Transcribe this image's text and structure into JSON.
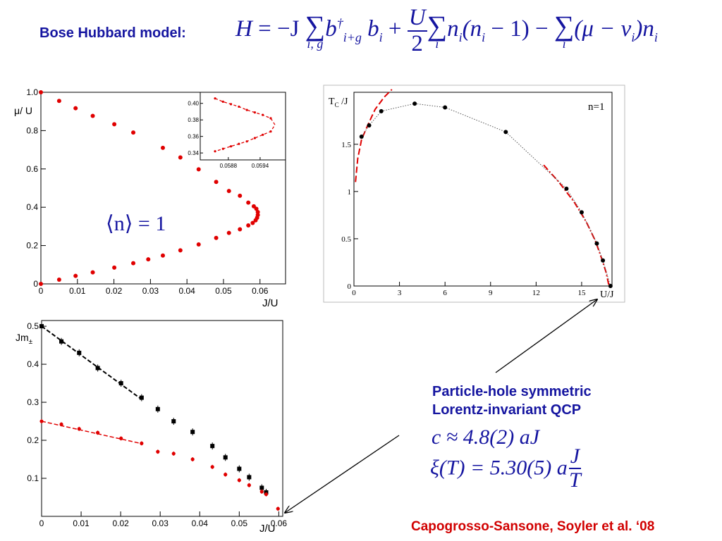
{
  "header": {
    "label": "Bose Hubbard model:",
    "formula": {
      "H": "H",
      "eq": " = −J",
      "sum1_idx": "i, g",
      "t1": "b",
      "t1_sup": "†",
      "t1_sub": "i+g",
      "t2": " b",
      "t2_sub": "i",
      "plus": " + ",
      "U": "U",
      "two": "2",
      "sum2_idx": "i",
      "t3": "n",
      "t3_sub": "i",
      "t4": "(n",
      "t4_sub": "i",
      "t5": " − 1) − ",
      "sum3_idx": "i",
      "t6": "(μ − v",
      "t6_sub": "i",
      "t7": ")n",
      "t7_sub": "i"
    }
  },
  "annotations": {
    "qcp_line1": "Particle-hole symmetric",
    "qcp_line2": "Lorentz-invariant QCP",
    "c_formula": "c ≈ 4.8(2) aJ",
    "xi_left": "ξ(T) = 5.30(5) a",
    "xi_num": "J",
    "xi_den": "T",
    "citation": "Capogrosso-Sansone, Soyler et al.  ‘08"
  },
  "colors": {
    "blue": "#1515a0",
    "red": "#e00000",
    "black": "#000000"
  },
  "chart_data": [
    {
      "id": "phase",
      "type": "scatter",
      "ylabel": "μ/ U",
      "xlabel": "J/U",
      "label": "⟨n⟩ = 1",
      "xlim": [
        0,
        0.067
      ],
      "ylim": [
        0,
        1.0
      ],
      "xticks": [
        "0",
        "0.01",
        "0.02",
        "0.03",
        "0.04",
        "0.05",
        "0.06"
      ],
      "yticks": [
        "0",
        "0.2",
        "0.4",
        "0.6",
        "0.8",
        "1.0"
      ],
      "upper": [
        [
          0,
          1.0
        ],
        [
          0.005,
          0.955
        ],
        [
          0.0095,
          0.917
        ],
        [
          0.0142,
          0.877
        ],
        [
          0.0201,
          0.833
        ],
        [
          0.0253,
          0.79
        ],
        [
          0.0334,
          0.71
        ],
        [
          0.0382,
          0.66
        ],
        [
          0.0432,
          0.598
        ],
        [
          0.048,
          0.532
        ],
        [
          0.0515,
          0.485
        ],
        [
          0.0545,
          0.46
        ],
        [
          0.0568,
          0.424
        ],
        [
          0.0583,
          0.405
        ],
        [
          0.059,
          0.392
        ]
      ],
      "lower": [
        [
          0,
          0.0
        ],
        [
          0.005,
          0.022
        ],
        [
          0.0095,
          0.042
        ],
        [
          0.0142,
          0.06
        ],
        [
          0.0201,
          0.085
        ],
        [
          0.0253,
          0.108
        ],
        [
          0.0294,
          0.128
        ],
        [
          0.0334,
          0.148
        ],
        [
          0.0382,
          0.175
        ],
        [
          0.0432,
          0.206
        ],
        [
          0.048,
          0.24
        ],
        [
          0.0515,
          0.266
        ],
        [
          0.0545,
          0.285
        ],
        [
          0.0568,
          0.305
        ],
        [
          0.058,
          0.318
        ],
        [
          0.0588,
          0.332
        ],
        [
          0.0592,
          0.345
        ],
        [
          0.0594,
          0.36
        ],
        [
          0.0594,
          0.375
        ]
      ],
      "inset": {
        "xticks": [
          "0.0588",
          "0.0594"
        ],
        "yticks": [
          "0.34",
          "0.36",
          "0.38",
          "0.40"
        ],
        "xlim": [
          0.05835,
          0.0598
        ],
        "ylim": [
          0.335,
          0.41
        ],
        "points": [
          [
            0.05855,
            0.406
          ],
          [
            0.0587,
            0.402
          ],
          [
            0.05885,
            0.399
          ],
          [
            0.059,
            0.396
          ],
          [
            0.05915,
            0.392
          ],
          [
            0.0593,
            0.389
          ],
          [
            0.05945,
            0.386
          ],
          [
            0.0596,
            0.382
          ],
          [
            0.0596,
            0.366
          ],
          [
            0.05945,
            0.362
          ],
          [
            0.0593,
            0.358
          ],
          [
            0.05915,
            0.354
          ],
          [
            0.059,
            0.351
          ],
          [
            0.05885,
            0.348
          ],
          [
            0.0587,
            0.345
          ],
          [
            0.05855,
            0.342
          ]
        ]
      }
    },
    {
      "id": "tc",
      "type": "line",
      "ylabel": "T",
      "ylabel_sub": "C",
      "ylabel_tail": " /J",
      "xlabel": "U/J",
      "legend": "n=1",
      "xlim": [
        0,
        17
      ],
      "ylim": [
        0,
        2.05
      ],
      "xticks": [
        "0",
        "3",
        "6",
        "9",
        "12",
        "15"
      ],
      "yticks": [
        "0",
        "0.5",
        "1",
        "1.5"
      ],
      "points": [
        [
          0.5,
          1.58
        ],
        [
          1.0,
          1.7
        ],
        [
          1.8,
          1.85
        ],
        [
          4.0,
          1.93
        ],
        [
          6.0,
          1.89
        ],
        [
          10.0,
          1.63
        ],
        [
          14.0,
          1.03
        ],
        [
          15.0,
          0.78
        ],
        [
          16.0,
          0.45
        ],
        [
          16.4,
          0.27
        ],
        [
          16.9,
          0.0
        ]
      ],
      "fit_left": [
        [
          0.1,
          1.1
        ],
        [
          0.25,
          1.35
        ],
        [
          0.5,
          1.55
        ],
        [
          0.9,
          1.7
        ],
        [
          1.4,
          1.87
        ],
        [
          2.0,
          2.0
        ],
        [
          2.5,
          2.08
        ]
      ],
      "fit_right": [
        [
          12.5,
          1.28
        ],
        [
          13.5,
          1.1
        ],
        [
          14.5,
          0.89
        ],
        [
          15.3,
          0.68
        ],
        [
          15.9,
          0.48
        ],
        [
          16.3,
          0.3
        ],
        [
          16.6,
          0.15
        ],
        [
          16.8,
          0.0
        ]
      ]
    },
    {
      "id": "gap",
      "type": "scatter",
      "ylabel": "Jm",
      "ylabel_sub": "±",
      "xlabel": "J/U",
      "xlim": [
        0,
        0.061
      ],
      "ylim": [
        0,
        0.515
      ],
      "xticks": [
        "0",
        "0.01",
        "0.02",
        "0.03",
        "0.04",
        "0.05",
        "0.06"
      ],
      "yticks": [
        "0.1",
        "0.2",
        "0.3",
        "0.4",
        "0.5"
      ],
      "black": [
        [
          0,
          0.5
        ],
        [
          0.005,
          0.46
        ],
        [
          0.0095,
          0.43
        ],
        [
          0.0142,
          0.39
        ],
        [
          0.0201,
          0.35
        ],
        [
          0.0253,
          0.312
        ],
        [
          0.0294,
          0.282
        ],
        [
          0.0334,
          0.25
        ],
        [
          0.0382,
          0.222
        ],
        [
          0.0432,
          0.185
        ],
        [
          0.0465,
          0.155
        ],
        [
          0.05,
          0.125
        ],
        [
          0.0525,
          0.103
        ],
        [
          0.0557,
          0.075
        ],
        [
          0.0568,
          0.063
        ]
      ],
      "red": [
        [
          0,
          0.25
        ],
        [
          0.005,
          0.242
        ],
        [
          0.0095,
          0.23
        ],
        [
          0.0142,
          0.22
        ],
        [
          0.0201,
          0.205
        ],
        [
          0.0253,
          0.192
        ],
        [
          0.0294,
          0.17
        ],
        [
          0.0334,
          0.165
        ],
        [
          0.0382,
          0.15
        ],
        [
          0.0432,
          0.13
        ],
        [
          0.0465,
          0.11
        ],
        [
          0.05,
          0.095
        ],
        [
          0.0525,
          0.082
        ],
        [
          0.0557,
          0.065
        ],
        [
          0.0568,
          0.058
        ],
        [
          0.0598,
          0.02
        ]
      ],
      "fit_black": [
        [
          0,
          0.5
        ],
        [
          0.025,
          0.31
        ]
      ],
      "fit_red": [
        [
          0,
          0.25
        ],
        [
          0.025,
          0.192
        ]
      ]
    }
  ]
}
